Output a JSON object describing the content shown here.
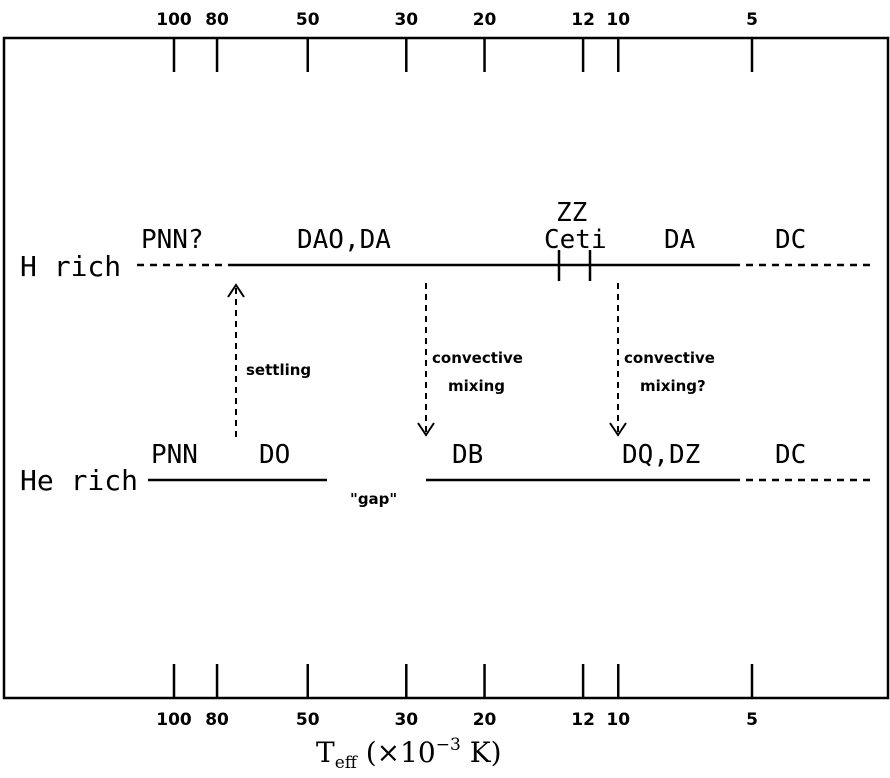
{
  "ticks": [
    {
      "label": "100",
      "temp": 100
    },
    {
      "label": "80",
      "temp": 80
    },
    {
      "label": "50",
      "temp": 50
    },
    {
      "label": "30",
      "temp": 30
    },
    {
      "label": "20",
      "temp": 20
    },
    {
      "label": "12",
      "temp": 12
    },
    {
      "label": "10",
      "temp": 10
    },
    {
      "label": "5",
      "temp": 5
    }
  ],
  "axis": {
    "title_main": "T",
    "title_sub": "eff",
    "title_rest": " (×10",
    "title_exp": "−3",
    "title_unit": " K)"
  },
  "rows": {
    "h_rich": "H rich",
    "he_rich": "He rich"
  },
  "h_classes": {
    "pnn": "PNN?",
    "dao_da": "DAO,DA",
    "zz": "ZZ",
    "ceti": "Ceti",
    "da": "DA",
    "dc": "DC"
  },
  "he_classes": {
    "pnn": "PNN",
    "do": "DO",
    "gap": "\"gap\"",
    "db": "DB",
    "dq_dz": "DQ,DZ",
    "dc": "DC"
  },
  "processes": {
    "settling": "settling",
    "convective_1": "convective",
    "mixing_1": "mixing",
    "convective_2": "convective",
    "mixing_2": "mixing?"
  }
}
